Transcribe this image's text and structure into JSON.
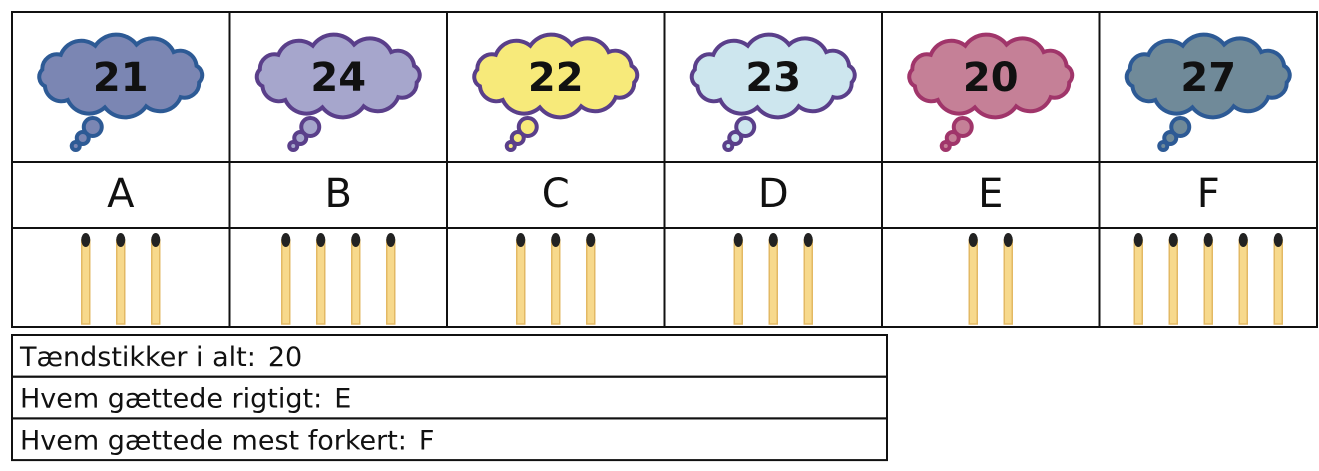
{
  "columns": [
    {
      "guess": 21,
      "label": "A",
      "matches": 3,
      "fill": "#7b86b3",
      "stroke": "#2d5a95"
    },
    {
      "guess": 24,
      "label": "B",
      "matches": 4,
      "fill": "#a6a6cc",
      "stroke": "#5a3f8a"
    },
    {
      "guess": 22,
      "label": "C",
      "matches": 3,
      "fill": "#f7ea7a",
      "stroke": "#5a3f8a"
    },
    {
      "guess": 23,
      "label": "D",
      "matches": 3,
      "fill": "#cde6ee",
      "stroke": "#5a3f8a"
    },
    {
      "guess": 20,
      "label": "E",
      "matches": 2,
      "fill": "#c58097",
      "stroke": "#a0356a"
    },
    {
      "guess": 27,
      "label": "F",
      "matches": 5,
      "fill": "#708a99",
      "stroke": "#2d5a95"
    }
  ],
  "summary": [
    {
      "label": "Tændstikker i alt:",
      "value": 20
    },
    {
      "label": "Hvem gættede rigtigt:",
      "value": "E"
    },
    {
      "label": "Hvem gættede mest forkert:",
      "value": "F"
    }
  ]
}
